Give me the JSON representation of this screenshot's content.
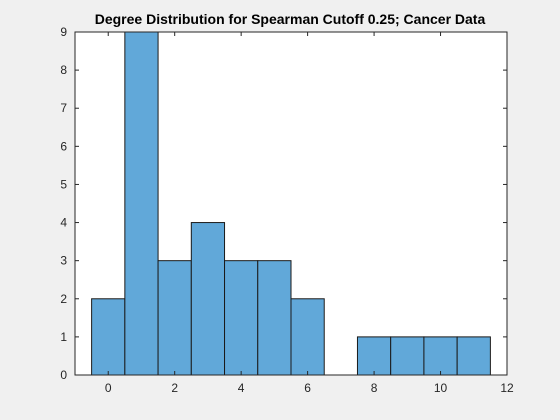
{
  "chart_data": {
    "type": "bar",
    "title": "Degree Distribution for Spearman Cutoff 0.25; Cancer Data",
    "xlabel": "",
    "ylabel": "",
    "bin_width": 1,
    "x": [
      0,
      1,
      2,
      3,
      4,
      5,
      6,
      7,
      8,
      9,
      10,
      11
    ],
    "values": [
      2,
      9,
      3,
      4,
      3,
      3,
      2,
      0,
      1,
      1,
      1,
      1
    ],
    "xlim": [
      -1,
      12
    ],
    "ylim": [
      0,
      9
    ],
    "xticks": [
      0,
      2,
      4,
      6,
      8,
      10,
      12
    ],
    "yticks": [
      0,
      1,
      2,
      3,
      4,
      5,
      6,
      7,
      8,
      9
    ],
    "grid": false,
    "legend": "none",
    "colors": {
      "bar_fill": "#61a8d9",
      "bar_edge": "#1a1a1a",
      "axes_bg": "#ffffff",
      "axes_edge": "#262626",
      "figure_bg": "#f0f0f0"
    }
  }
}
